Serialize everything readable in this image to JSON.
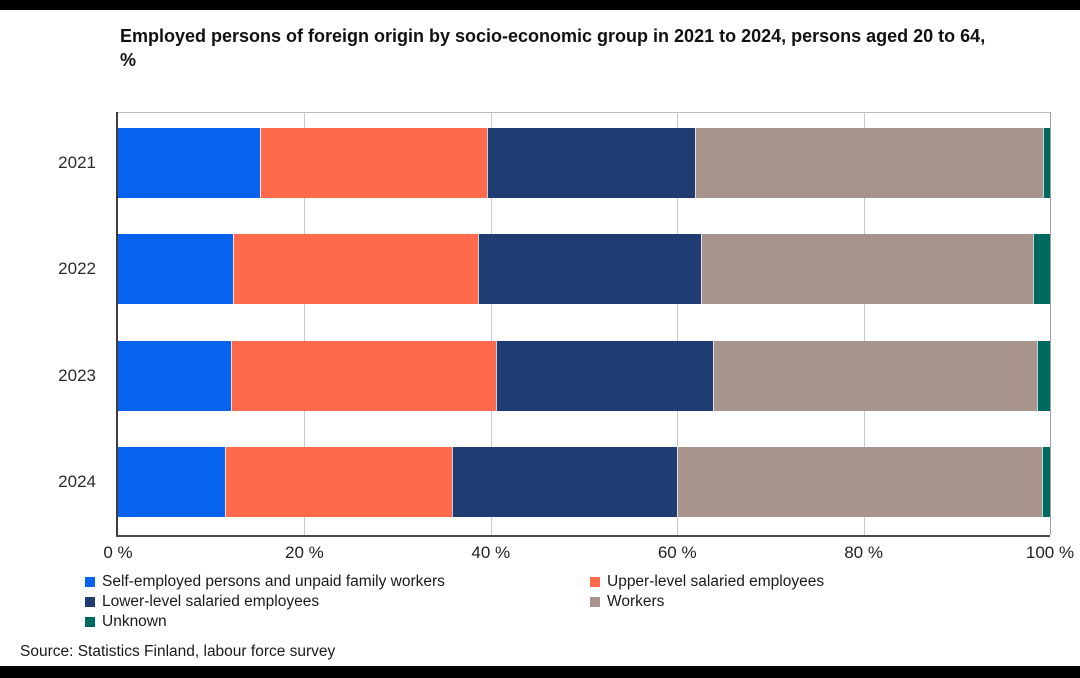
{
  "title": "Employed persons of foreign origin by socio-economic group in 2021 to 2024, persons aged 20 to 64, %",
  "source": "Source: Statistics Finland, labour force survey",
  "colors": {
    "self_employed": "#0563f0",
    "upper_level": "#ff6a4d",
    "lower_level": "#1f3d73",
    "workers": "#a6948d",
    "unknown": "#00695f"
  },
  "chart_data": {
    "type": "bar",
    "orientation": "horizontal-stacked",
    "title": "Employed persons of foreign origin by socio-economic group in 2021 to 2024, persons aged 20 to 64, %",
    "categories": [
      "2021",
      "2022",
      "2023",
      "2024"
    ],
    "series": [
      {
        "name": "Self-employed persons and unpaid family workers",
        "color": "#0563f0",
        "values": [
          15.2,
          12.3,
          12.1,
          11.5
        ]
      },
      {
        "name": "Upper-level salaried employees",
        "color": "#ff6a4d",
        "values": [
          24.4,
          26.3,
          28.5,
          24.3
        ]
      },
      {
        "name": "Lower-level salaried employees",
        "color": "#1f3d73",
        "values": [
          22.3,
          24.0,
          23.2,
          24.2
        ]
      },
      {
        "name": "Workers",
        "color": "#a6948d",
        "values": [
          37.3,
          35.6,
          34.8,
          39.1
        ]
      },
      {
        "name": "Unknown",
        "color": "#00695f",
        "values": [
          0.8,
          1.8,
          1.4,
          0.9
        ]
      }
    ],
    "xlabel": "",
    "ylabel": "",
    "xlim": [
      0,
      100
    ],
    "x_ticks": [
      {
        "value": 0,
        "label": "0 %"
      },
      {
        "value": 20,
        "label": "20 %"
      },
      {
        "value": 40,
        "label": "40 %"
      },
      {
        "value": 60,
        "label": "60 %"
      },
      {
        "value": 80,
        "label": "80 %"
      },
      {
        "value": 100,
        "label": "100 %"
      }
    ],
    "grid": "vertical",
    "legend_position": "bottom"
  }
}
